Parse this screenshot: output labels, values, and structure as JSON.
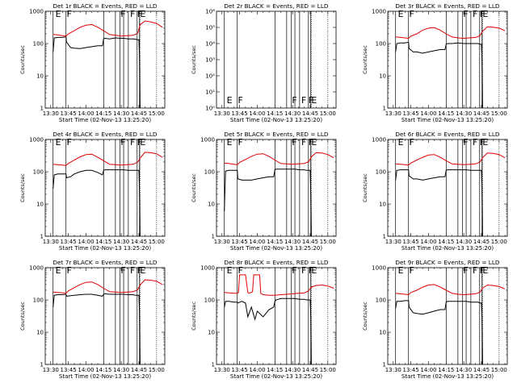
{
  "colors": {
    "events": "#000000",
    "lld": "#e00000",
    "background": "#ffffff"
  },
  "axis": {
    "xlabel": "Start Time (02-Nov-13 13:25:20)",
    "ylabel": "Counts/sec",
    "xticks": [
      "13:30",
      "13:45",
      "14:00",
      "14:15",
      "14:30",
      "14:45",
      "15:00"
    ],
    "xtick_minutes": [
      30,
      45,
      60,
      75,
      90,
      105,
      120
    ],
    "xlim": [
      25.33,
      127
    ],
    "yticks_std": [
      "1",
      "10",
      "100",
      "1000"
    ],
    "ylim_std": [
      1,
      1000
    ],
    "yticks_2r": [
      "10⁰",
      "10¹",
      "10²",
      "10³",
      "10⁴",
      "10⁵",
      "10⁶"
    ],
    "ylim_2r": [
      1,
      1000000
    ],
    "scale": "log",
    "vline_minutes": [
      32,
      43,
      75,
      85,
      89,
      92,
      96,
      103.5,
      105.5
    ],
    "dotted_minutes": [
      106,
      120
    ],
    "flag_letters": [
      {
        "t": 34,
        "letter": "E"
      },
      {
        "t": 43.5,
        "letter": "F"
      },
      {
        "t": 89.5,
        "letter": "F"
      },
      {
        "t": 97.5,
        "letter": "F"
      },
      {
        "t": 103.5,
        "letter": "F"
      },
      {
        "t": 106,
        "letter": "E"
      }
    ]
  },
  "chart_data": [
    {
      "type": "line",
      "title": "Det 1r BLACK = Events, RED = LLD",
      "xlabel": "Start Time (02-Nov-13 13:25:20)",
      "ylabel": "Counts/sec",
      "ylim": [
        1,
        1000
      ],
      "yscale": "log",
      "series": [
        {
          "name": "BLACK = Events",
          "x": [
            32,
            33,
            36,
            40,
            43,
            43.5,
            47,
            50,
            55,
            60,
            65,
            70,
            74,
            75,
            76,
            80,
            85,
            90,
            92,
            96,
            100,
            102,
            104,
            105,
            105.5,
            106
          ],
          "y": [
            55,
            150,
            155,
            155,
            160,
            110,
            75,
            72,
            70,
            75,
            80,
            85,
            85,
            140,
            145,
            140,
            150,
            145,
            145,
            140,
            140,
            135,
            130,
            130,
            40,
            0
          ]
        },
        {
          "name": "RED = LLD",
          "x": [
            32,
            36,
            40,
            43,
            45,
            50,
            55,
            60,
            65,
            70,
            75,
            80,
            85,
            90,
            95,
            100,
            103,
            104,
            106,
            110,
            115,
            120,
            125
          ],
          "y": [
            190,
            185,
            175,
            170,
            200,
            250,
            320,
            370,
            390,
            320,
            250,
            190,
            180,
            170,
            175,
            180,
            200,
            210,
            380,
            500,
            470,
            420,
            320
          ]
        }
      ]
    },
    {
      "type": "line",
      "title": "Det 2r BLACK = Events, RED = LLD",
      "xlabel": "",
      "ylabel": "Counts/sec",
      "ylim": [
        1,
        1000000
      ],
      "yscale": "log",
      "series": []
    },
    {
      "type": "line",
      "title": "Det 3r BLACK = Events, RED = LLD",
      "xlabel": "Start Time (02-Nov-13 13:25:20)",
      "ylabel": "Counts/sec",
      "ylim": [
        1,
        1000
      ],
      "yscale": "log",
      "series": [
        {
          "name": "BLACK = Events",
          "x": [
            32,
            33,
            36,
            40,
            43,
            43.5,
            47,
            50,
            55,
            60,
            65,
            70,
            74,
            75,
            76,
            80,
            85,
            90,
            92,
            96,
            100,
            102,
            104,
            105,
            105.5,
            106
          ],
          "y": [
            55,
            100,
            105,
            105,
            110,
            70,
            55,
            55,
            50,
            55,
            60,
            65,
            65,
            95,
            100,
            100,
            105,
            100,
            100,
            100,
            100,
            100,
            95,
            95,
            30,
            0
          ]
        },
        {
          "name": "RED = LLD",
          "x": [
            32,
            36,
            40,
            43,
            45,
            50,
            55,
            60,
            65,
            70,
            75,
            80,
            85,
            90,
            95,
            100,
            103,
            104,
            106,
            110,
            115,
            120,
            125
          ],
          "y": [
            160,
            155,
            150,
            145,
            170,
            200,
            260,
            300,
            310,
            260,
            200,
            160,
            150,
            145,
            150,
            155,
            170,
            180,
            240,
            330,
            320,
            300,
            250
          ]
        }
      ]
    },
    {
      "type": "line",
      "title": "Det 4r BLACK = Events, RED = LLD",
      "xlabel": "Start Time (02-Nov-13 13:25:20)",
      "ylabel": "Counts/sec",
      "ylim": [
        1,
        1000
      ],
      "yscale": "log",
      "series": [
        {
          "name": "BLACK = Events",
          "x": [
            32,
            33,
            36,
            40,
            43,
            43.5,
            47,
            50,
            55,
            60,
            65,
            70,
            74,
            75,
            76,
            80,
            85,
            90,
            92,
            96,
            100,
            102,
            104,
            105,
            105.5,
            106
          ],
          "y": [
            30,
            80,
            85,
            85,
            85,
            65,
            70,
            85,
            100,
            110,
            110,
            95,
            80,
            110,
            115,
            115,
            115,
            115,
            115,
            110,
            110,
            110,
            110,
            110,
            25,
            0
          ]
        },
        {
          "name": "RED = LLD",
          "x": [
            32,
            36,
            40,
            43,
            45,
            50,
            55,
            60,
            65,
            70,
            75,
            80,
            85,
            90,
            95,
            100,
            103,
            104,
            106,
            110,
            115,
            120,
            125
          ],
          "y": [
            170,
            165,
            160,
            155,
            180,
            230,
            290,
            340,
            350,
            280,
            220,
            170,
            165,
            160,
            165,
            170,
            190,
            200,
            260,
            400,
            390,
            360,
            280
          ]
        }
      ]
    },
    {
      "type": "line",
      "title": "Det 5r BLACK = Events, RED = LLD",
      "xlabel": "Start Time (02-Nov-13 13:25:20)",
      "ylabel": "Counts/sec",
      "ylim": [
        1,
        1000
      ],
      "yscale": "log",
      "series": [
        {
          "name": "BLACK = Events",
          "x": [
            32,
            33,
            36,
            40,
            43,
            43.5,
            47,
            50,
            55,
            60,
            65,
            70,
            74,
            75,
            76,
            80,
            85,
            90,
            92,
            96,
            100,
            102,
            104,
            105,
            105.5,
            106
          ],
          "y": [
            6,
            105,
            110,
            110,
            110,
            60,
            55,
            55,
            55,
            60,
            65,
            70,
            70,
            115,
            120,
            120,
            120,
            120,
            120,
            115,
            115,
            110,
            110,
            110,
            20,
            0
          ]
        },
        {
          "name": "RED = LLD",
          "x": [
            32,
            36,
            40,
            43,
            45,
            50,
            55,
            60,
            65,
            70,
            75,
            80,
            85,
            90,
            95,
            100,
            103,
            104,
            106,
            110,
            115,
            120,
            125
          ],
          "y": [
            185,
            180,
            170,
            165,
            195,
            240,
            300,
            350,
            360,
            300,
            230,
            180,
            175,
            170,
            175,
            180,
            200,
            210,
            290,
            390,
            380,
            340,
            270
          ]
        }
      ]
    },
    {
      "type": "line",
      "title": "Det 6r BLACK = Events, RED = LLD",
      "xlabel": "Start Time (02-Nov-13 13:25:20)",
      "ylabel": "Counts/sec",
      "ylim": [
        1,
        1000
      ],
      "yscale": "log",
      "series": [
        {
          "name": "BLACK = Events",
          "x": [
            32,
            33,
            36,
            40,
            43,
            43.5,
            47,
            50,
            55,
            60,
            65,
            70,
            74,
            75,
            76,
            80,
            85,
            90,
            92,
            96,
            100,
            102,
            104,
            105,
            105.5,
            106
          ],
          "y": [
            55,
            110,
            115,
            115,
            115,
            75,
            60,
            60,
            55,
            60,
            65,
            70,
            70,
            110,
            115,
            115,
            115,
            115,
            115,
            110,
            110,
            110,
            110,
            110,
            30,
            0
          ]
        },
        {
          "name": "RED = LLD",
          "x": [
            32,
            36,
            40,
            43,
            45,
            50,
            55,
            60,
            65,
            70,
            75,
            80,
            85,
            90,
            95,
            100,
            103,
            104,
            106,
            110,
            115,
            120,
            125
          ],
          "y": [
            175,
            170,
            165,
            160,
            185,
            230,
            280,
            330,
            340,
            280,
            220,
            175,
            170,
            165,
            170,
            175,
            195,
            205,
            270,
            380,
            370,
            340,
            270
          ]
        }
      ]
    },
    {
      "type": "line",
      "title": "Det 7r BLACK = Events, RED = LLD",
      "xlabel": "Start Time (02-Nov-13 13:25:20)",
      "ylabel": "Counts/sec",
      "ylim": [
        1,
        1000
      ],
      "yscale": "log",
      "series": [
        {
          "name": "BLACK = Events",
          "x": [
            32,
            33,
            36,
            40,
            43,
            43.5,
            47,
            50,
            55,
            60,
            65,
            70,
            74,
            75,
            76,
            80,
            85,
            90,
            92,
            96,
            100,
            102,
            104,
            105,
            105.5,
            106
          ],
          "y": [
            60,
            140,
            145,
            145,
            150,
            130,
            135,
            140,
            145,
            150,
            150,
            140,
            130,
            150,
            155,
            150,
            150,
            150,
            150,
            145,
            145,
            140,
            140,
            140,
            40,
            0
          ]
        },
        {
          "name": "RED = LLD",
          "x": [
            32,
            36,
            40,
            43,
            45,
            50,
            55,
            60,
            65,
            70,
            75,
            80,
            85,
            90,
            95,
            100,
            103,
            104,
            106,
            110,
            115,
            120,
            125
          ],
          "y": [
            175,
            170,
            165,
            160,
            190,
            240,
            300,
            350,
            360,
            300,
            230,
            180,
            175,
            170,
            175,
            180,
            200,
            210,
            290,
            420,
            410,
            380,
            300
          ]
        }
      ]
    },
    {
      "type": "line",
      "title": "Det 8r BLACK = Events, RED = LLD",
      "xlabel": "Start Time (02-Nov-13 13:25:20)",
      "ylabel": "Counts/sec",
      "ylim": [
        1,
        1000
      ],
      "yscale": "log",
      "series": [
        {
          "name": "BLACK = Events",
          "x": [
            32,
            33,
            36,
            40,
            43,
            43.5,
            45,
            47,
            50,
            52,
            55,
            58,
            60,
            63,
            65,
            70,
            74,
            75,
            76,
            80,
            85,
            90,
            92,
            96,
            100,
            102,
            104,
            105,
            105.5,
            106
          ],
          "y": [
            60,
            90,
            90,
            85,
            85,
            80,
            85,
            90,
            80,
            30,
            60,
            25,
            45,
            35,
            30,
            50,
            60,
            90,
            100,
            110,
            110,
            110,
            110,
            105,
            105,
            100,
            100,
            100,
            30,
            0
          ]
        },
        {
          "name": "RED = LLD",
          "x": [
            32,
            36,
            40,
            43,
            44,
            45,
            50,
            52,
            53,
            56,
            57,
            62,
            63,
            65,
            70,
            75,
            80,
            85,
            90,
            95,
            100,
            103,
            104,
            106,
            110,
            115,
            120,
            125
          ],
          "y": [
            170,
            165,
            160,
            160,
            170,
            600,
            600,
            170,
            160,
            180,
            600,
            600,
            160,
            145,
            140,
            140,
            145,
            150,
            155,
            160,
            165,
            185,
            200,
            250,
            280,
            290,
            270,
            230
          ]
        }
      ]
    },
    {
      "type": "line",
      "title": "Det 9r BLACK = Events, RED = LLD",
      "xlabel": "Start Time (02-Nov-13 13:25:20)",
      "ylabel": "Counts/sec",
      "ylim": [
        1,
        1000
      ],
      "yscale": "log",
      "series": [
        {
          "name": "BLACK = Events",
          "x": [
            32,
            33,
            36,
            40,
            43,
            43.5,
            47,
            50,
            55,
            60,
            65,
            70,
            74,
            75,
            76,
            80,
            85,
            90,
            92,
            96,
            100,
            102,
            104,
            105,
            105.5,
            106
          ],
          "y": [
            55,
            90,
            90,
            95,
            95,
            60,
            40,
            38,
            36,
            40,
            45,
            50,
            50,
            85,
            90,
            90,
            90,
            90,
            90,
            85,
            85,
            85,
            80,
            80,
            25,
            0
          ]
        },
        {
          "name": "RED = LLD",
          "x": [
            32,
            36,
            40,
            43,
            45,
            50,
            55,
            60,
            65,
            70,
            75,
            80,
            85,
            90,
            95,
            100,
            103,
            104,
            106,
            110,
            115,
            120,
            125
          ],
          "y": [
            160,
            155,
            150,
            145,
            170,
            200,
            250,
            290,
            300,
            250,
            200,
            160,
            150,
            145,
            150,
            155,
            170,
            180,
            230,
            290,
            280,
            260,
            220
          ]
        }
      ]
    }
  ]
}
